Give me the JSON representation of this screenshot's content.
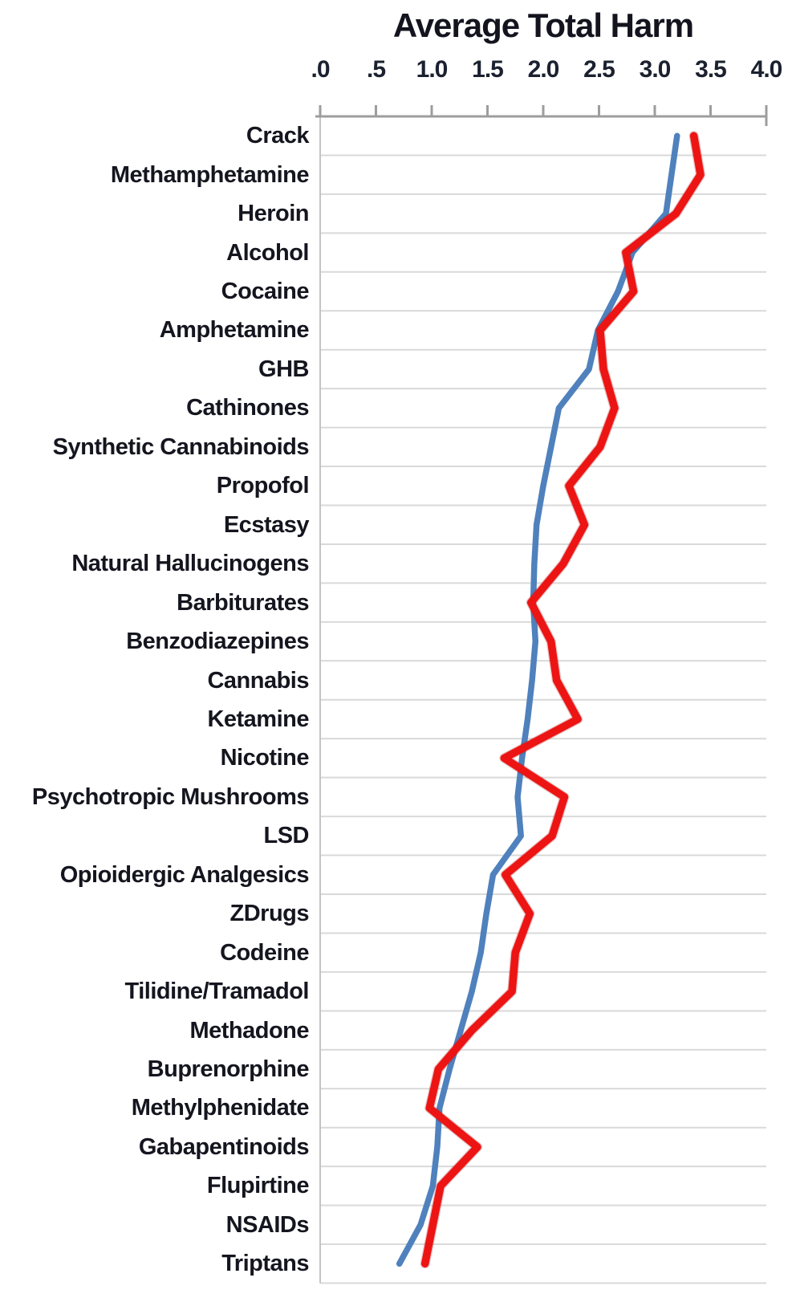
{
  "chart_data": {
    "type": "line",
    "title": "Average Total Harm",
    "x_axis": {
      "position": "top",
      "min": 0,
      "max": 4,
      "ticks": [
        ".0",
        ".5",
        "1.0",
        "1.5",
        "2.0",
        "2.5",
        "3.0",
        "3.5",
        "4.0"
      ]
    },
    "grid": true,
    "legend": "none",
    "categories": [
      "Crack",
      "Methamphetamine",
      "Heroin",
      "Alcohol",
      "Cocaine",
      "Amphetamine",
      "GHB",
      "Cathinones",
      "Synthetic Cannabinoids",
      "Propofol",
      "Ecstasy",
      "Natural Hallucinogens",
      "Barbiturates",
      "Benzodiazepines",
      "Cannabis",
      "Ketamine",
      "Nicotine",
      "Psychotropic Mushrooms",
      "LSD",
      "Opioidergic Analgesics",
      "ZDrugs",
      "Codeine",
      "Tilidine/Tramadol",
      "Methadone",
      "Buprenorphine",
      "Methylphenidate",
      "Gabapentinoids",
      "Flupirtine",
      "NSAIDs",
      "Triptans"
    ],
    "series": [
      {
        "name": "blue",
        "color": "#4f81bd",
        "values": [
          3.2,
          3.15,
          3.1,
          2.8,
          2.67,
          2.49,
          2.41,
          2.14,
          2.07,
          2.0,
          1.94,
          1.92,
          1.91,
          1.93,
          1.9,
          1.86,
          1.81,
          1.77,
          1.8,
          1.55,
          1.49,
          1.44,
          1.36,
          1.26,
          1.16,
          1.07,
          1.05,
          1.01,
          0.9,
          0.71
        ]
      },
      {
        "name": "red",
        "color": "#ed1414",
        "values": [
          3.35,
          3.41,
          3.19,
          2.74,
          2.81,
          2.51,
          2.54,
          2.64,
          2.51,
          2.23,
          2.37,
          2.18,
          1.89,
          2.07,
          2.12,
          2.31,
          1.65,
          2.19,
          2.08,
          1.66,
          1.88,
          1.75,
          1.72,
          1.36,
          1.06,
          0.98,
          1.41,
          1.08,
          1.01,
          0.94
        ]
      }
    ],
    "colors": {
      "axis_line": "#9d9d9d",
      "gridline": "#d9d9d9",
      "plot_border": "#c4c4c4",
      "text": "#15151f"
    }
  }
}
